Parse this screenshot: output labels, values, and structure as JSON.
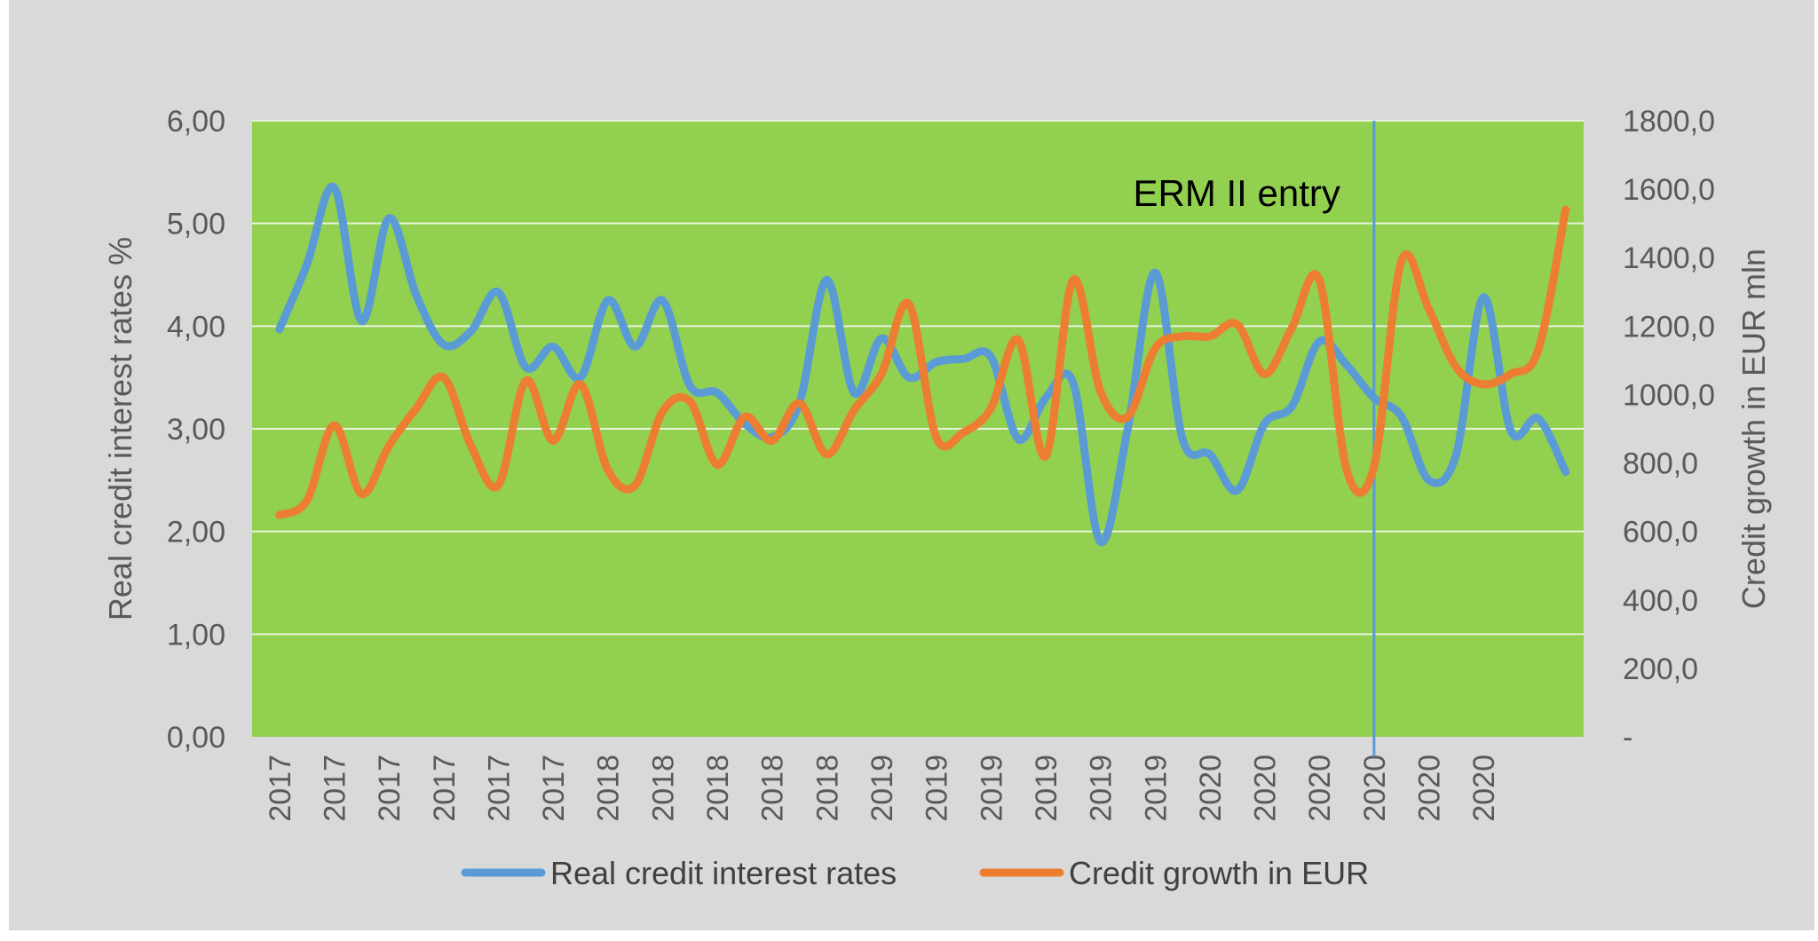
{
  "chart_data": {
    "type": "line",
    "title": "",
    "y_left_label": "Real credit interest rates %",
    "y_right_label": "Credit growth in EUR mln",
    "y_left_ticks": [
      "0,00",
      "1,00",
      "2,00",
      "3,00",
      "4,00",
      "5,00",
      "6,00"
    ],
    "y_right_ticks": [
      "-",
      "200,0",
      "400,0",
      "600,0",
      "800,0",
      "1000,0",
      "1200,0",
      "1400,0",
      "1600,0",
      "1800,0"
    ],
    "ylim_left": [
      0,
      6
    ],
    "ylim_right": [
      0,
      1800
    ],
    "categories": [
      "2017",
      "2017",
      "2017",
      "2017",
      "2017",
      "2017",
      "2018",
      "2018",
      "2018",
      "2018",
      "2018",
      "2019",
      "2019",
      "2019",
      "2019",
      "2019",
      "2019",
      "2020",
      "2020",
      "2020",
      "2020",
      "2020",
      "2020"
    ],
    "grid": true,
    "background_color": "#92d050",
    "outer_background": "#d9d9d9",
    "annotation": {
      "label": "ERM II entry",
      "at_x": "2020"
    },
    "legend_position": "bottom",
    "series": [
      {
        "name": "Real credit interest rates",
        "axis": "left",
        "color": "#5b9bd5",
        "points": [
          [
            0,
            3.97
          ],
          [
            0.5,
            4.6
          ],
          [
            1,
            5.35
          ],
          [
            1.5,
            4.05
          ],
          [
            2,
            5.05
          ],
          [
            2.5,
            4.3
          ],
          [
            3,
            3.82
          ],
          [
            3.5,
            3.95
          ],
          [
            4,
            4.33
          ],
          [
            4.5,
            3.6
          ],
          [
            5,
            3.8
          ],
          [
            5.5,
            3.5
          ],
          [
            6,
            4.25
          ],
          [
            6.5,
            3.8
          ],
          [
            7,
            4.25
          ],
          [
            7.5,
            3.42
          ],
          [
            8,
            3.35
          ],
          [
            8.5,
            3.05
          ],
          [
            9,
            2.92
          ],
          [
            9.5,
            3.25
          ],
          [
            10,
            4.45
          ],
          [
            10.5,
            3.35
          ],
          [
            11,
            3.88
          ],
          [
            11.5,
            3.5
          ],
          [
            12,
            3.65
          ],
          [
            12.5,
            3.68
          ],
          [
            13,
            3.7
          ],
          [
            13.5,
            2.9
          ],
          [
            14,
            3.3
          ],
          [
            14.5,
            3.45
          ],
          [
            15,
            1.9
          ],
          [
            15.5,
            3.0
          ],
          [
            16,
            4.52
          ],
          [
            16.5,
            2.9
          ],
          [
            17,
            2.75
          ],
          [
            17.5,
            2.4
          ],
          [
            18,
            3.05
          ],
          [
            18.5,
            3.22
          ],
          [
            19,
            3.85
          ],
          [
            19.5,
            3.62
          ],
          [
            20,
            3.3
          ],
          [
            20.5,
            3.12
          ],
          [
            21,
            2.5
          ],
          [
            21.5,
            2.75
          ],
          [
            22,
            4.28
          ],
          [
            22.5,
            2.98
          ],
          [
            23,
            3.1
          ],
          [
            23.5,
            2.58
          ]
        ]
      },
      {
        "name": "Credit growth in EUR",
        "axis": "right",
        "color": "#ed7d31",
        "points": [
          [
            0,
            648
          ],
          [
            0.5,
            690
          ],
          [
            1,
            910
          ],
          [
            1.5,
            710
          ],
          [
            2,
            850
          ],
          [
            2.5,
            960
          ],
          [
            3,
            1050
          ],
          [
            3.5,
            850
          ],
          [
            4,
            735
          ],
          [
            4.5,
            1040
          ],
          [
            5,
            865
          ],
          [
            5.5,
            1030
          ],
          [
            6,
            780
          ],
          [
            6.5,
            735
          ],
          [
            7,
            950
          ],
          [
            7.5,
            980
          ],
          [
            8,
            795
          ],
          [
            8.5,
            935
          ],
          [
            9,
            865
          ],
          [
            9.5,
            975
          ],
          [
            10,
            825
          ],
          [
            10.5,
            955
          ],
          [
            11,
            1060
          ],
          [
            11.5,
            1265
          ],
          [
            12,
            875
          ],
          [
            12.5,
            890
          ],
          [
            13,
            960
          ],
          [
            13.5,
            1160
          ],
          [
            14,
            820
          ],
          [
            14.5,
            1335
          ],
          [
            15,
            1010
          ],
          [
            15.5,
            935
          ],
          [
            16,
            1135
          ],
          [
            16.5,
            1170
          ],
          [
            17,
            1170
          ],
          [
            17.5,
            1205
          ],
          [
            18,
            1060
          ],
          [
            18.5,
            1195
          ],
          [
            19,
            1335
          ],
          [
            19.5,
            780
          ],
          [
            20,
            790
          ],
          [
            20.5,
            1390
          ],
          [
            21,
            1250
          ],
          [
            21.5,
            1080
          ],
          [
            22,
            1030
          ],
          [
            22.5,
            1060
          ],
          [
            23,
            1130
          ],
          [
            23.5,
            1540
          ]
        ]
      }
    ]
  }
}
